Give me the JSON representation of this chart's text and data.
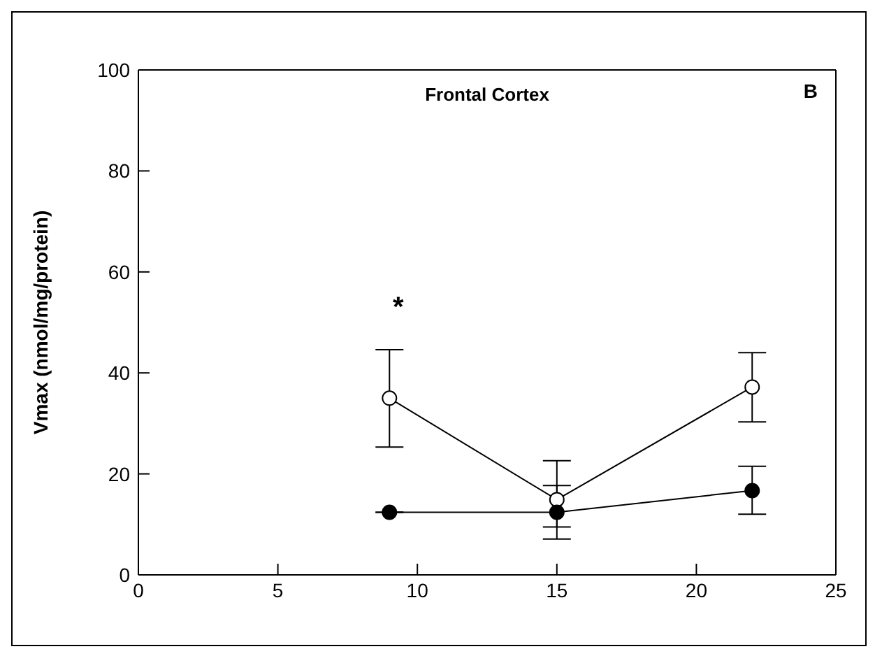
{
  "chart_data": {
    "type": "line",
    "title": "Frontal Cortex",
    "ylabel": "Vmax (nmol/mg/protein)",
    "x": [
      9,
      15,
      22
    ],
    "series": [
      {
        "color": "#000000",
        "values": [
          35,
          14.9,
          37.2
        ],
        "errors": [
          [
            25.3,
            44.6
          ],
          [
            9.5,
            22.6
          ],
          [
            30.3,
            44
          ]
        ]
      },
      {
        "color": "#000000",
        "values": [
          12.4,
          12.4,
          16.7
        ],
        "errors": [
          null,
          [
            7.1,
            17.7
          ],
          [
            12,
            21.5
          ]
        ]
      }
    ],
    "xlim": [
      0,
      25
    ],
    "xticks": [
      0,
      5,
      10,
      15,
      20,
      25
    ],
    "ylim": [
      0,
      100
    ],
    "yticks": [
      0,
      20,
      40,
      60,
      80,
      100
    ],
    "marker": "circle",
    "line_style": "solid",
    "annotations": [
      "B",
      "*"
    ]
  }
}
